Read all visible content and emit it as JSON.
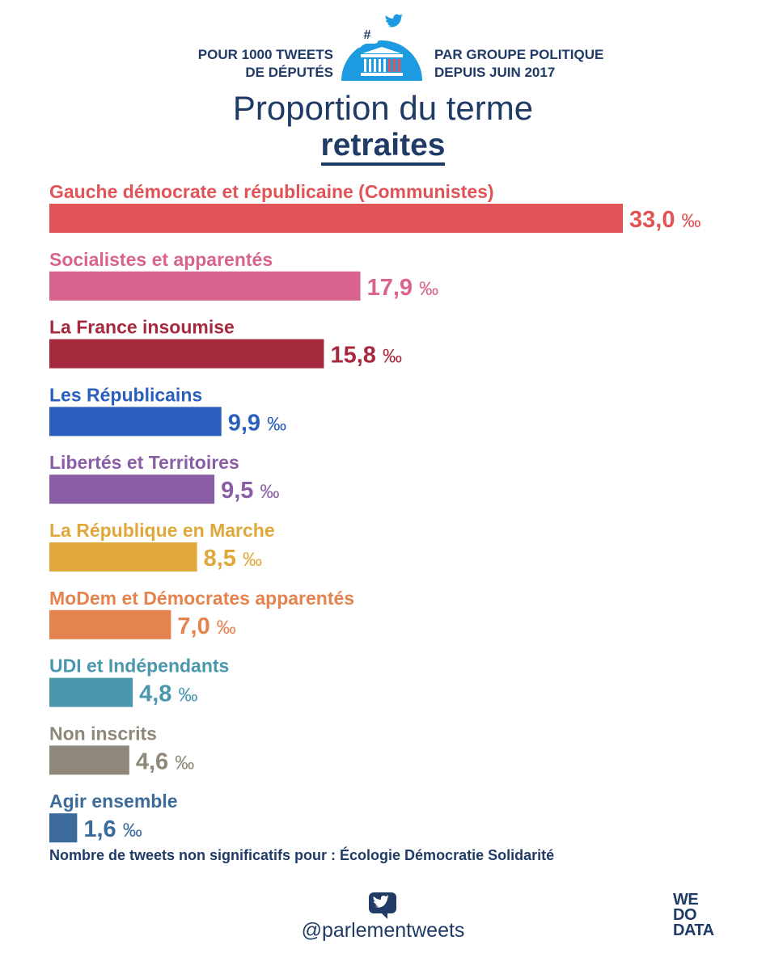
{
  "header": {
    "left_line1": "POUR 1000 TWEETS",
    "left_line2": "DE DÉPUTÉS",
    "right_line1": "PAR GROUPE POLITIQUE",
    "right_line2": "DEPUIS JUIN 2017",
    "logo_hashtag": "#"
  },
  "title": "Proportion du terme",
  "term": "retraites",
  "chart_data": {
    "type": "bar",
    "orientation": "horizontal",
    "unit": "‰",
    "categories": [
      "Gauche démocrate et républicaine (Communistes)",
      "Socialistes et apparentés",
      "La France insoumise",
      "Les Républicains",
      "Libertés et Territoires",
      "La République en Marche",
      "MoDem et Démocrates apparentés",
      "UDI et Indépendants",
      "Non inscrits",
      "Agir ensemble"
    ],
    "values": [
      33.0,
      17.9,
      15.8,
      9.9,
      9.5,
      8.5,
      7.0,
      4.8,
      4.6,
      1.6
    ],
    "value_labels": [
      "33,0",
      "17,9",
      "15,8",
      "9,9",
      "9,5",
      "8,5",
      "7,0",
      "4,8",
      "4,6",
      "1,6"
    ],
    "colors": [
      "#e05357",
      "#d9638f",
      "#a52a3e",
      "#2a5fbd",
      "#8a5ea5",
      "#e0a83a",
      "#e5834e",
      "#4a97ae",
      "#8f8779",
      "#3b6a9b"
    ],
    "xlim": [
      0,
      33.0
    ],
    "grid": false,
    "legend": "none"
  },
  "note": "Nombre de tweets non significatifs pour : Écologie Démocratie Solidarité",
  "footer": {
    "handle": "@parlementweets",
    "brand_line1": "WE",
    "brand_line2": "DO",
    "brand_line3": "DATA"
  },
  "icons": {
    "hashtag_bubble": "hashtag-bubble-icon",
    "twitter": "twitter-bird-icon",
    "assembly": "assembly-building-icon"
  }
}
